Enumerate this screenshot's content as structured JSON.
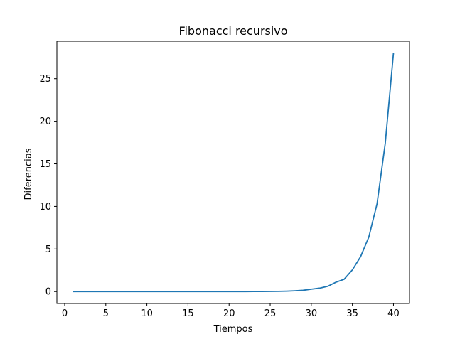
{
  "chart_data": {
    "type": "line",
    "title": "Fibonacci recursivo",
    "xlabel": "Tiempos",
    "ylabel": "Diferencias",
    "xlim": [
      -0.95,
      41.95
    ],
    "ylim": [
      -1.4,
      29.4
    ],
    "xticks": [
      0,
      5,
      10,
      15,
      20,
      25,
      30,
      35,
      40
    ],
    "yticks": [
      0,
      5,
      10,
      15,
      20,
      25
    ],
    "grid": false,
    "legend": "none",
    "series": [
      {
        "color": "#1f77b4",
        "x": [
          1,
          2,
          3,
          4,
          5,
          6,
          7,
          8,
          9,
          10,
          11,
          12,
          13,
          14,
          15,
          16,
          17,
          18,
          19,
          20,
          21,
          22,
          23,
          24,
          25,
          26,
          27,
          28,
          29,
          30,
          31,
          32,
          33,
          34,
          35,
          36,
          37,
          38,
          39,
          40
        ],
        "y": [
          0,
          0,
          0,
          0,
          0,
          0,
          0,
          0,
          0,
          0,
          0,
          0,
          0,
          0,
          0,
          0,
          0,
          0,
          0,
          0,
          0.003,
          0.005,
          0.008,
          0.012,
          0.02,
          0.03,
          0.05,
          0.09,
          0.15,
          0.28,
          0.4,
          0.62,
          1.1,
          1.45,
          2.55,
          4.1,
          6.4,
          10.3,
          17.4,
          28.0
        ]
      }
    ]
  }
}
